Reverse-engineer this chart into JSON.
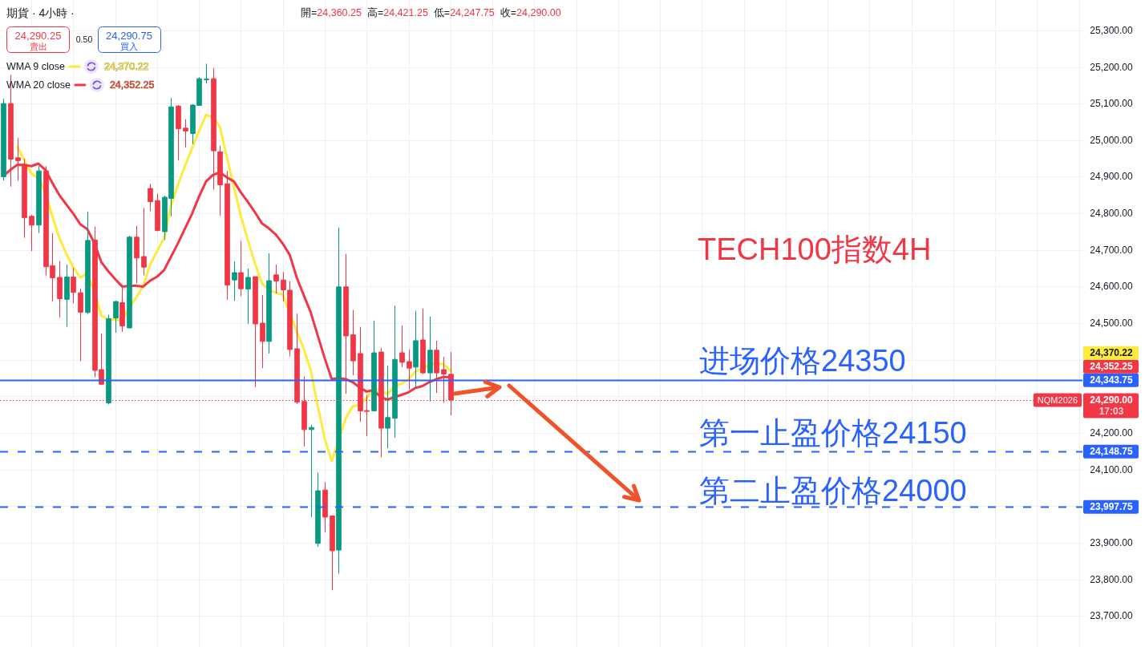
{
  "chart_data": {
    "type": "candlestick",
    "title": "期貨 · 4小時 ·",
    "categories": [
      null,
      null,
      null,
      null,
      null,
      null,
      null,
      null,
      null,
      null,
      null,
      null,
      null,
      null,
      null,
      null,
      null,
      null,
      null,
      null,
      null,
      null,
      null,
      null,
      null,
      null,
      null,
      null,
      null,
      null,
      null,
      null,
      null,
      null,
      null,
      null,
      null,
      null,
      null,
      null,
      null,
      null,
      null,
      null,
      null,
      null,
      null,
      null,
      null,
      null,
      null,
      null,
      null,
      null,
      null,
      null,
      null,
      null,
      null,
      null,
      null,
      null,
      null,
      null,
      null,
      null,
      null,
      null,
      null,
      null,
      null,
      null,
      null,
      null,
      null,
      null,
      null,
      null,
      null,
      null,
      null,
      null,
      null,
      null,
      null,
      null,
      null,
      null,
      null,
      null,
      null,
      null,
      null,
      null,
      null,
      null,
      null,
      null,
      null,
      null,
      null,
      null,
      null,
      null,
      null,
      null,
      null,
      null,
      null,
      null,
      null,
      null,
      null,
      null,
      null,
      null,
      null,
      null,
      null,
      null,
      null,
      null,
      null,
      null,
      null,
      null,
      null,
      null,
      null,
      null,
      null,
      null,
      null,
      null,
      null,
      null,
      null,
      null,
      null,
      null,
      null,
      null,
      null,
      null,
      null,
      null,
      null,
      null,
      null,
      null,
      null,
      null,
      null,
      null,
      null
    ],
    "ohlc": [
      [
        24900,
        25113,
        24890,
        25100
      ],
      [
        25100,
        25179,
        24873,
        24948
      ],
      [
        24952,
        25006,
        24889,
        24944
      ],
      [
        24934,
        24949,
        24733,
        24788
      ],
      [
        24792,
        24796,
        24697,
        24768
      ],
      [
        24768,
        24929,
        24746,
        24916
      ],
      [
        24916,
        24929,
        24631,
        24654
      ],
      [
        24657,
        24746,
        24559,
        24624
      ],
      [
        24625,
        24670,
        24515,
        24567
      ],
      [
        24565,
        24660,
        24490,
        24626
      ],
      [
        24626,
        24651,
        24554,
        24584
      ],
      [
        24583,
        24594,
        24396,
        24530
      ],
      [
        24529,
        24805,
        24525,
        24726
      ],
      [
        24727,
        24764,
        24352,
        24371
      ],
      [
        24373,
        24472,
        24331,
        24333
      ],
      [
        24282,
        24523,
        24278,
        24512
      ],
      [
        24514,
        24561,
        24474,
        24559
      ],
      [
        24556,
        24600,
        24476,
        24492
      ],
      [
        24487,
        24739,
        24485,
        24735
      ],
      [
        24735,
        24766,
        24609,
        24678
      ],
      [
        24682,
        24815,
        24631,
        24653
      ],
      [
        24868,
        24881,
        24806,
        24832
      ],
      [
        24835,
        24854,
        24751,
        24753
      ],
      [
        24750,
        24849,
        24727,
        24844
      ],
      [
        24841,
        25115,
        24792,
        25091
      ],
      [
        25093,
        25096,
        24945,
        25031
      ],
      [
        25033,
        25057,
        24980,
        25025
      ],
      [
        25018,
        25098,
        24989,
        25096
      ],
      [
        25095,
        25172,
        25095,
        25168
      ],
      [
        25166,
        25209,
        25155,
        25167
      ],
      [
        25168,
        25197,
        24865,
        24971
      ],
      [
        24968,
        24985,
        24794,
        24878
      ],
      [
        24881,
        24916,
        24564,
        24604
      ],
      [
        24618,
        24669,
        24561,
        24638
      ],
      [
        24638,
        24724,
        24574,
        24594
      ],
      [
        24593,
        24649,
        24498,
        24625
      ],
      [
        24627,
        24627,
        24325,
        24498
      ],
      [
        24500,
        24577,
        24377,
        24450
      ],
      [
        24450,
        24691,
        24417,
        24616
      ],
      [
        24632,
        24660,
        24581,
        24615
      ],
      [
        24618,
        24640,
        24559,
        24591
      ],
      [
        24590,
        24614,
        24409,
        24428
      ],
      [
        24430,
        24526,
        24279,
        24284
      ],
      [
        24286,
        24355,
        24163,
        24209
      ],
      [
        24209,
        24222,
        23970,
        24215
      ],
      [
        23898,
        24092,
        23889,
        24042
      ],
      [
        24044,
        24066,
        23929,
        23970
      ],
      [
        23973,
        23975,
        23770,
        23878
      ],
      [
        23880,
        24761,
        23815,
        24599
      ],
      [
        24599,
        24689,
        24307,
        24465
      ],
      [
        24468,
        24536,
        24358,
        24397
      ],
      [
        24417,
        24490,
        24230,
        24260
      ],
      [
        24261,
        24304,
        24191,
        24260
      ],
      [
        24260,
        24507,
        24260,
        24419
      ],
      [
        24421,
        24432,
        24133,
        24213
      ],
      [
        24213,
        24384,
        24158,
        24242
      ],
      [
        24240,
        24548,
        24187,
        24401
      ],
      [
        24419,
        24493,
        24380,
        24393
      ],
      [
        24395,
        24428,
        24319,
        24377
      ],
      [
        24380,
        24534,
        24324,
        24452
      ],
      [
        24454,
        24540,
        24361,
        24364
      ],
      [
        24364,
        24518,
        24286,
        24426
      ],
      [
        24426,
        24452,
        24309,
        24364
      ],
      [
        24373,
        24408,
        24282,
        24361
      ],
      [
        24360.25,
        24421.25,
        24247.75,
        24290.0
      ],
      null,
      null,
      null,
      null,
      null,
      null,
      null,
      null,
      null,
      null,
      null,
      null,
      null,
      null,
      null,
      null,
      null,
      null,
      null,
      null,
      null,
      null,
      null,
      null,
      null,
      null,
      null,
      null,
      null,
      null,
      null,
      null,
      null,
      null,
      null,
      null,
      null,
      null,
      null,
      null,
      null,
      null,
      null,
      null,
      null,
      null,
      null,
      null,
      null,
      null,
      null,
      null,
      null,
      null,
      null,
      null,
      null,
      null,
      null,
      null,
      null,
      null,
      null,
      null,
      null,
      null,
      null,
      null,
      null,
      null,
      null,
      null,
      null,
      null,
      null,
      null,
      null,
      null,
      null,
      null,
      null,
      null,
      null,
      null,
      null,
      null,
      null,
      null,
      null,
      null
    ],
    "colors": [
      "#089981",
      "#f23645",
      "#f23645",
      "#f23645",
      "#f23645",
      "#089981",
      "#f23645",
      "#f23645",
      "#f23645",
      "#089981",
      "#f23645",
      "#f23645",
      "#089981",
      "#f23645",
      "#f23645",
      "#089981",
      "#089981",
      "#f23645",
      "#089981",
      "#f23645",
      "#f23645",
      "#f23645",
      "#f23645",
      "#089981",
      "#089981",
      "#f23645",
      "#f23645",
      "#089981",
      "#089981",
      "#089981",
      "#f23645",
      "#f23645",
      "#f23645",
      "#089981",
      "#f23645",
      "#089981",
      "#f23645",
      "#f23645",
      "#089981",
      "#f23645",
      "#f23645",
      "#f23645",
      "#f23645",
      "#f23645",
      "#089981",
      "#089981",
      "#f23645",
      "#f23645",
      "#089981",
      "#f23645",
      "#f23645",
      "#f23645",
      "#f23645",
      "#089981",
      "#f23645",
      "#089981",
      "#089981",
      "#f23645",
      "#f23645",
      "#089981",
      "#f23645",
      "#089981",
      "#f23645",
      "#f23645",
      "#f23645",
      null,
      null,
      null,
      null,
      null,
      null,
      null,
      null,
      null,
      null,
      null,
      null,
      null,
      null,
      null,
      null,
      null,
      null,
      null,
      null,
      null,
      null,
      null,
      null,
      null,
      null,
      null,
      null,
      null,
      null,
      null,
      null,
      null,
      null,
      null,
      null,
      null,
      null,
      null,
      null,
      null,
      null,
      null,
      null,
      null,
      null,
      null,
      null,
      null,
      null,
      null,
      null,
      null,
      null,
      null,
      null,
      null,
      null,
      null,
      null,
      null,
      null,
      null,
      null,
      null,
      null,
      null,
      null,
      null,
      null,
      null,
      null,
      null,
      null,
      null,
      null,
      null,
      null,
      null,
      null,
      null,
      null,
      null,
      null,
      null,
      null,
      null,
      null,
      null,
      null
    ],
    "series": [
      {
        "name": "WMA 9 close",
        "type": "line",
        "color": "#ffeb3b",
        "values": [
          null,
          null,
          24981,
          24945,
          24908,
          24897,
          24857,
          24792,
          24733,
          24689,
          24653,
          24625,
          24635,
          24587,
          24521,
          24510,
          24510,
          24507,
          24543,
          24569,
          24602,
          24660,
          24697,
          24733,
          24821,
          24879,
          24930,
          24978,
          25025,
          25069,
          25062,
          25036,
          24952,
          24872,
          24792,
          24726,
          24664,
          24609,
          24591,
          24583,
          24578,
          null,
          24477,
          24430,
          24371,
          24273,
          24185,
          24123,
          null,
          24240,
          24273,
          24276,
          24295,
          24320,
          24317,
          24306,
          24328,
          24335,
          24346,
          24368,
          24375,
          24386,
          24390,
          24388,
          24370.22,
          null,
          null,
          null,
          null,
          null,
          null,
          null,
          null,
          null,
          null,
          null,
          null,
          null,
          null,
          null,
          null,
          null,
          null,
          null,
          null,
          null,
          null,
          null,
          null,
          null,
          null,
          null,
          null,
          null,
          null,
          null,
          null,
          null,
          null,
          null,
          null,
          null,
          null,
          null,
          null,
          null,
          null,
          null,
          null,
          null,
          null,
          null,
          null,
          null,
          null,
          null,
          null,
          null,
          null,
          null,
          null,
          null,
          null,
          null,
          null,
          null,
          null,
          null,
          null,
          null,
          null,
          null,
          null,
          null,
          null,
          null,
          null,
          null,
          null,
          null,
          null,
          null,
          null,
          null,
          null,
          null,
          null,
          null,
          null,
          null,
          null,
          null,
          null,
          null,
          null
        ]
      },
      {
        "name": "WMA 20 close",
        "type": "line",
        "color": "#f23645",
        "values": [
          24903,
          24919,
          24933,
          24932,
          24929,
          24936,
          24919,
          24883,
          24850,
          24824,
          24799,
          24770,
          24757,
          24719,
          24667,
          24642,
          24620,
          24600,
          24602,
          24602,
          24600,
          24616,
          24627,
          24645,
          24682,
          24719,
          24759,
          24799,
          24846,
          24887,
          24905,
          24912,
          24898,
          24887,
          24857,
          24831,
          24803,
          24773,
          24759,
          24742,
          24717,
          24686,
          24624,
          24576,
          24529,
          24466,
          24404,
          24347,
          24350,
          24347,
          24339,
          24324,
          24313,
          24317,
          24298,
          24291,
          24298,
          24304,
          24311,
          24323,
          24328,
          24339,
          24347,
          24353,
          24352.25,
          null,
          null,
          null,
          null,
          null,
          null,
          null,
          null,
          null,
          null,
          null,
          null,
          null,
          null,
          null,
          null,
          null,
          null,
          null,
          null,
          null,
          null,
          null,
          null,
          null,
          null,
          null,
          null,
          null,
          null,
          null,
          null,
          null,
          null,
          null,
          null,
          null,
          null,
          null,
          null,
          null,
          null,
          null,
          null,
          null,
          null,
          null,
          null,
          null,
          null,
          null,
          null,
          null,
          null,
          null,
          null,
          null,
          null,
          null,
          null,
          null,
          null,
          null,
          null,
          null,
          null,
          null,
          null,
          null,
          null,
          null,
          null,
          null,
          null,
          null,
          null,
          null,
          null,
          null,
          null,
          null,
          null,
          null,
          null,
          null,
          null,
          null,
          null,
          null,
          null
        ]
      }
    ],
    "ylim": [
      23615,
      25383
    ],
    "yticks": [
      {
        "value": 23700,
        "label": "23,700.00"
      },
      {
        "value": 23800,
        "label": "23,800.00"
      },
      {
        "value": 23900,
        "label": "23,900.00"
      },
      {
        "value": 24000,
        "label": null
      },
      {
        "value": 24100,
        "label": "24,100.00"
      },
      {
        "value": 24200,
        "label": "24,200.00"
      },
      {
        "value": 24300,
        "label": null
      },
      {
        "value": 24400,
        "label": null
      },
      {
        "value": 24500,
        "label": "24,500.00"
      },
      {
        "value": 24600,
        "label": "24,600.00"
      },
      {
        "value": 24700,
        "label": "24,700.00"
      },
      {
        "value": 24800,
        "label": "24,800.00"
      },
      {
        "value": 24900,
        "label": "24,900.00"
      },
      {
        "value": 25000,
        "label": "25,000.00"
      },
      {
        "value": 25100,
        "label": "25,100.00"
      },
      {
        "value": 25200,
        "label": "25,200.00"
      },
      {
        "value": 25300,
        "label": "25,300.00"
      }
    ],
    "tick_labels": "y",
    "grid": true,
    "legend": "top left",
    "ref_lines": [
      {
        "axis": "y",
        "value": 24343.75,
        "label": "24,343.75",
        "color": "#2962ff",
        "line_style": "solid"
      },
      {
        "axis": "y",
        "value": 24290,
        "label": "24,290.00",
        "color": "#f23645",
        "line_style": "dotted"
      },
      {
        "axis": "y",
        "value": 24148.75,
        "label": "24,148.75",
        "color": "#2962ff",
        "line_style": "dashed"
      },
      {
        "axis": "y",
        "value": 23997.75,
        "label": "23,997.75",
        "color": "#2962ff",
        "line_style": "dashed"
      }
    ],
    "annotations": [
      "開=24,360.25",
      "高=24,421.25",
      "低=24,247.75",
      "收=24,290.00",
      "24,290.25",
      "賣出",
      "0.50",
      "24,290.75",
      "買入",
      "TECH100指数4H",
      "进场价格24350",
      "第一止盈价格24150",
      "第二止盈价格24000",
      {
        "text": "NQM2026",
        "y": 24290
      },
      "17:03",
      "24,370.22",
      "24,352.25",
      "24,370.22",
      "24,352.25"
    ]
  }
}
